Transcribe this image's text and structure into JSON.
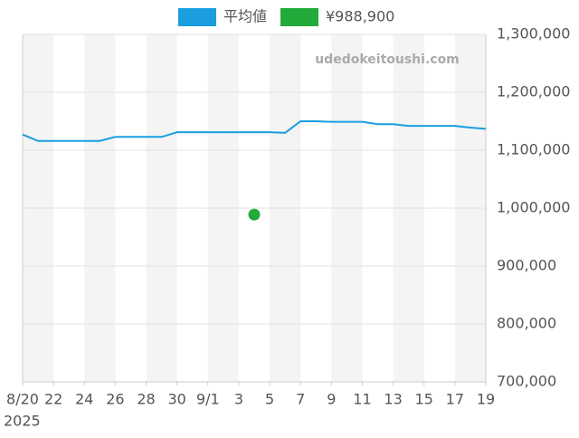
{
  "chart_data": {
    "type": "line",
    "watermark": "udedokeitoushi.com",
    "x_year_label": "2025",
    "xlim": [
      "2025-08-20",
      "2025-09-19"
    ],
    "xticks": [
      {
        "value": "2025-08-20",
        "label": "8/20"
      },
      {
        "value": "2025-08-22",
        "label": "22"
      },
      {
        "value": "2025-08-24",
        "label": "24"
      },
      {
        "value": "2025-08-26",
        "label": "26"
      },
      {
        "value": "2025-08-28",
        "label": "28"
      },
      {
        "value": "2025-08-30",
        "label": "30"
      },
      {
        "value": "2025-09-01",
        "label": "9/1"
      },
      {
        "value": "2025-09-03",
        "label": "3"
      },
      {
        "value": "2025-09-05",
        "label": "5"
      },
      {
        "value": "2025-09-07",
        "label": "7"
      },
      {
        "value": "2025-09-09",
        "label": "9"
      },
      {
        "value": "2025-09-11",
        "label": "11"
      },
      {
        "value": "2025-09-13",
        "label": "13"
      },
      {
        "value": "2025-09-15",
        "label": "15"
      },
      {
        "value": "2025-09-17",
        "label": "17"
      },
      {
        "value": "2025-09-19",
        "label": "19"
      }
    ],
    "ylim": [
      700000,
      1300000
    ],
    "yticks": [
      {
        "value": 700000,
        "label": "700,000"
      },
      {
        "value": 800000,
        "label": "800,000"
      },
      {
        "value": 900000,
        "label": "900,000"
      },
      {
        "value": 1000000,
        "label": "1,000,000"
      },
      {
        "value": 1100000,
        "label": "1,100,000"
      },
      {
        "value": 1200000,
        "label": "1,200,000"
      },
      {
        "value": 1300000,
        "label": "1,300,000"
      }
    ],
    "grid": true,
    "series": [
      {
        "name": "平均値",
        "color": "#1a9ee0",
        "mode": "line",
        "x": [
          "2025-08-20",
          "2025-08-21",
          "2025-08-22",
          "2025-08-23",
          "2025-08-24",
          "2025-08-25",
          "2025-08-26",
          "2025-08-27",
          "2025-08-28",
          "2025-08-29",
          "2025-08-30",
          "2025-08-31",
          "2025-09-01",
          "2025-09-02",
          "2025-09-03",
          "2025-09-04",
          "2025-09-05",
          "2025-09-06",
          "2025-09-07",
          "2025-09-08",
          "2025-09-09",
          "2025-09-10",
          "2025-09-11",
          "2025-09-12",
          "2025-09-13",
          "2025-09-14",
          "2025-09-15",
          "2025-09-16",
          "2025-09-17",
          "2025-09-18",
          "2025-09-19"
        ],
        "values": [
          1127000,
          1116000,
          1116000,
          1116000,
          1116000,
          1116000,
          1123000,
          1123000,
          1123000,
          1123000,
          1131000,
          1131000,
          1131000,
          1131000,
          1131000,
          1131000,
          1131000,
          1130000,
          1150000,
          1150000,
          1149000,
          1149000,
          1149000,
          1145000,
          1145000,
          1142000,
          1142000,
          1142000,
          1142000,
          1139000,
          1137000
        ]
      },
      {
        "name": "¥988,900",
        "color": "#22aa3a",
        "mode": "marker",
        "x": [
          "2025-09-04"
        ],
        "values": [
          988900
        ]
      }
    ]
  }
}
